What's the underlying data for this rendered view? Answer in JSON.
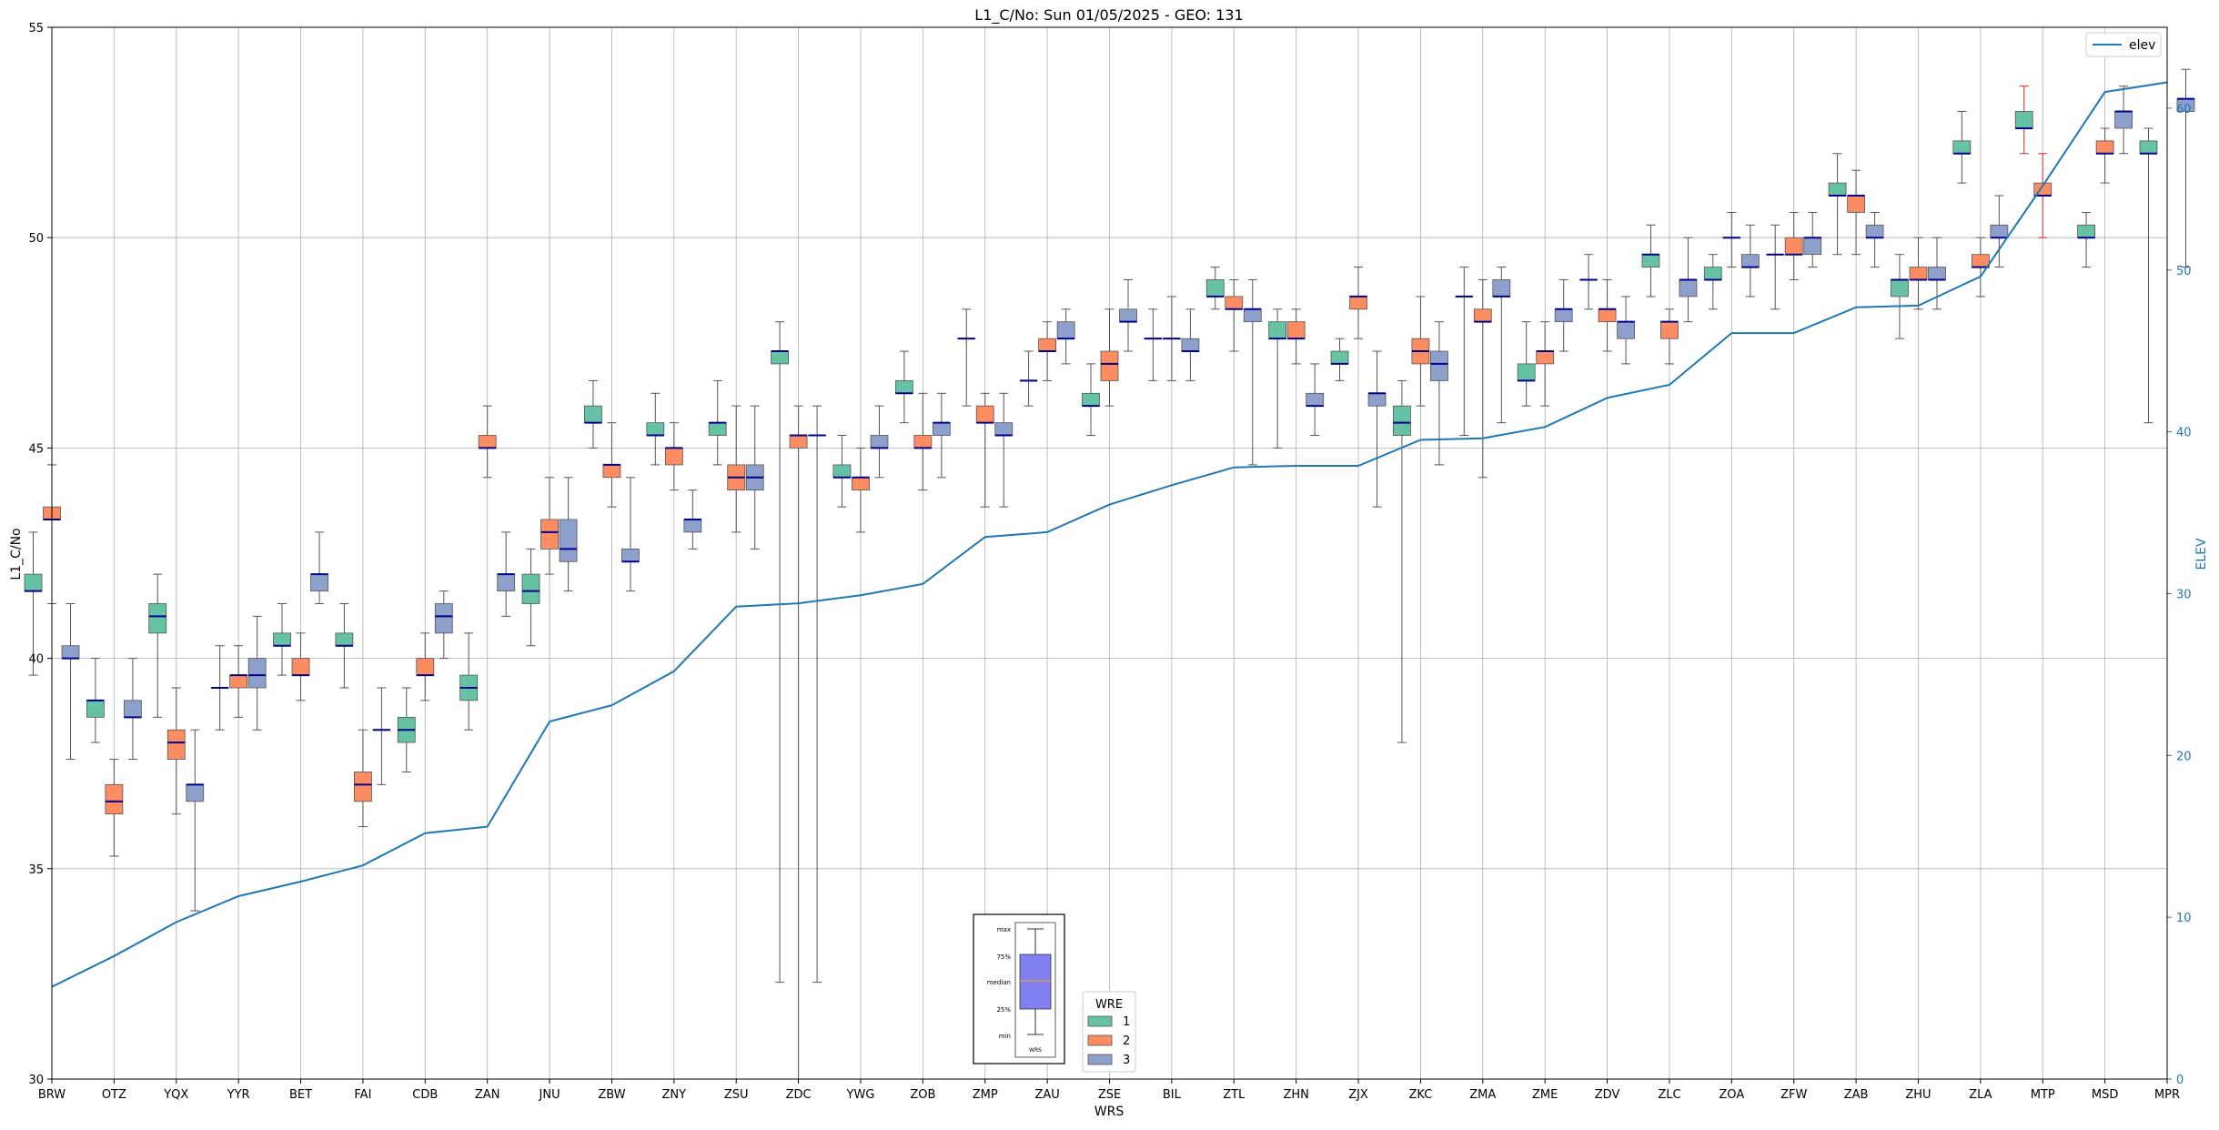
{
  "chart_data": {
    "type": "box",
    "title": "L1_C/No: Sun 01/05/2025 - GEO: 131",
    "xlabel": "WRS",
    "ylabel": "L1_C/No",
    "y2label": "ELEV",
    "ylim": [
      30,
      55
    ],
    "y2lim": [
      0,
      65
    ],
    "yticks": [
      30,
      35,
      40,
      45,
      50,
      55
    ],
    "y2ticks": [
      0,
      10,
      20,
      30,
      40,
      50,
      60
    ],
    "grid": true,
    "categories": [
      "BRW",
      "OTZ",
      "YQX",
      "YYR",
      "BET",
      "FAI",
      "CDB",
      "ZAN",
      "JNU",
      "ZBW",
      "ZNY",
      "ZSU",
      "ZDC",
      "YWG",
      "ZOB",
      "ZMP",
      "ZAU",
      "ZSE",
      "BIL",
      "ZTL",
      "ZHN",
      "ZJX",
      "ZKC",
      "ZMA",
      "ZME",
      "ZDV",
      "ZLC",
      "ZOA",
      "ZFW",
      "ZAB",
      "ZHU",
      "ZLA",
      "MTP",
      "MSD",
      "MPR"
    ],
    "wre_colors": {
      "1": "#66c2a5",
      "2": "#fc8d62",
      "3": "#8da0cb"
    },
    "median_color": "#00008b",
    "boxes": [
      {
        "cat": "BRW",
        "wre": 1,
        "min": 39.6,
        "q1": 41.6,
        "med": 41.6,
        "q3": 42.0,
        "max": 43.0
      },
      {
        "cat": "BRW",
        "wre": 2,
        "min": 41.3,
        "q1": 43.3,
        "med": 43.3,
        "q3": 43.6,
        "max": 44.6
      },
      {
        "cat": "BRW",
        "wre": 3,
        "min": 37.6,
        "q1": 40.0,
        "med": 40.0,
        "q3": 40.3,
        "max": 41.3
      },
      {
        "cat": "OTZ",
        "wre": 1,
        "min": 38.0,
        "q1": 38.6,
        "med": 39.0,
        "q3": 39.0,
        "max": 40.0
      },
      {
        "cat": "OTZ",
        "wre": 2,
        "min": 35.3,
        "q1": 36.3,
        "med": 36.6,
        "q3": 37.0,
        "max": 37.6
      },
      {
        "cat": "OTZ",
        "wre": 3,
        "min": 37.6,
        "q1": 38.6,
        "med": 38.6,
        "q3": 39.0,
        "max": 40.0
      },
      {
        "cat": "YQX",
        "wre": 1,
        "min": 38.6,
        "q1": 40.6,
        "med": 41.0,
        "q3": 41.3,
        "max": 42.0
      },
      {
        "cat": "YQX",
        "wre": 2,
        "min": 36.3,
        "q1": 37.6,
        "med": 38.0,
        "q3": 38.3,
        "max": 39.3
      },
      {
        "cat": "YQX",
        "wre": 3,
        "min": 34.0,
        "q1": 36.6,
        "med": 37.0,
        "q3": 37.0,
        "max": 38.3
      },
      {
        "cat": "YYR",
        "wre": 1,
        "min": 38.3,
        "q1": 39.3,
        "med": 39.3,
        "q3": 39.3,
        "max": 40.3
      },
      {
        "cat": "YYR",
        "wre": 2,
        "min": 38.6,
        "q1": 39.3,
        "med": 39.6,
        "q3": 39.6,
        "max": 40.3
      },
      {
        "cat": "YYR",
        "wre": 3,
        "min": 38.3,
        "q1": 39.3,
        "med": 39.6,
        "q3": 40.0,
        "max": 41.0
      },
      {
        "cat": "BET",
        "wre": 1,
        "min": 39.6,
        "q1": 40.3,
        "med": 40.3,
        "q3": 40.6,
        "max": 41.3
      },
      {
        "cat": "BET",
        "wre": 2,
        "min": 39.0,
        "q1": 39.6,
        "med": 39.6,
        "q3": 40.0,
        "max": 40.6
      },
      {
        "cat": "BET",
        "wre": 3,
        "min": 41.3,
        "q1": 41.6,
        "med": 42.0,
        "q3": 42.0,
        "max": 43.0
      },
      {
        "cat": "FAI",
        "wre": 1,
        "min": 39.3,
        "q1": 40.3,
        "med": 40.3,
        "q3": 40.6,
        "max": 41.3
      },
      {
        "cat": "FAI",
        "wre": 2,
        "min": 36.0,
        "q1": 36.6,
        "med": 37.0,
        "q3": 37.3,
        "max": 38.3
      },
      {
        "cat": "FAI",
        "wre": 3,
        "min": 37.0,
        "q1": 38.3,
        "med": 38.3,
        "q3": 38.3,
        "max": 39.3
      },
      {
        "cat": "CDB",
        "wre": 1,
        "min": 37.3,
        "q1": 38.0,
        "med": 38.3,
        "q3": 38.6,
        "max": 39.3
      },
      {
        "cat": "CDB",
        "wre": 2,
        "min": 39.0,
        "q1": 39.6,
        "med": 39.6,
        "q3": 40.0,
        "max": 40.6
      },
      {
        "cat": "CDB",
        "wre": 3,
        "min": 40.0,
        "q1": 40.6,
        "med": 41.0,
        "q3": 41.3,
        "max": 41.6
      },
      {
        "cat": "ZAN",
        "wre": 1,
        "min": 38.3,
        "q1": 39.0,
        "med": 39.3,
        "q3": 39.6,
        "max": 40.6
      },
      {
        "cat": "ZAN",
        "wre": 2,
        "min": 44.3,
        "q1": 45.0,
        "med": 45.0,
        "q3": 45.3,
        "max": 46.0
      },
      {
        "cat": "ZAN",
        "wre": 3,
        "min": 41.0,
        "q1": 41.6,
        "med": 42.0,
        "q3": 42.0,
        "max": 43.0
      },
      {
        "cat": "JNU",
        "wre": 1,
        "min": 40.3,
        "q1": 41.3,
        "med": 41.6,
        "q3": 42.0,
        "max": 42.6
      },
      {
        "cat": "JNU",
        "wre": 2,
        "min": 42.0,
        "q1": 42.6,
        "med": 43.0,
        "q3": 43.3,
        "max": 44.3
      },
      {
        "cat": "JNU",
        "wre": 3,
        "min": 41.6,
        "q1": 42.3,
        "med": 42.6,
        "q3": 43.3,
        "max": 44.3
      },
      {
        "cat": "ZBW",
        "wre": 1,
        "min": 45.0,
        "q1": 45.6,
        "med": 45.6,
        "q3": 46.0,
        "max": 46.6
      },
      {
        "cat": "ZBW",
        "wre": 2,
        "min": 43.6,
        "q1": 44.3,
        "med": 44.6,
        "q3": 44.6,
        "max": 45.6
      },
      {
        "cat": "ZBW",
        "wre": 3,
        "min": 41.6,
        "q1": 42.3,
        "med": 42.3,
        "q3": 42.6,
        "max": 44.3
      },
      {
        "cat": "ZNY",
        "wre": 1,
        "min": 44.6,
        "q1": 45.3,
        "med": 45.3,
        "q3": 45.6,
        "max": 46.3
      },
      {
        "cat": "ZNY",
        "wre": 2,
        "min": 44.0,
        "q1": 44.6,
        "med": 45.0,
        "q3": 45.0,
        "max": 45.6
      },
      {
        "cat": "ZNY",
        "wre": 3,
        "min": 42.6,
        "q1": 43.0,
        "med": 43.3,
        "q3": 43.3,
        "max": 44.0
      },
      {
        "cat": "ZSU",
        "wre": 1,
        "min": 44.6,
        "q1": 45.3,
        "med": 45.6,
        "q3": 45.6,
        "max": 46.6
      },
      {
        "cat": "ZSU",
        "wre": 2,
        "min": 43.0,
        "q1": 44.0,
        "med": 44.3,
        "q3": 44.6,
        "max": 46.0
      },
      {
        "cat": "ZSU",
        "wre": 3,
        "min": 42.6,
        "q1": 44.0,
        "med": 44.3,
        "q3": 44.6,
        "max": 46.0
      },
      {
        "cat": "ZDC",
        "wre": 1,
        "min": 32.3,
        "q1": 47.0,
        "med": 47.3,
        "q3": 47.3,
        "max": 48.0
      },
      {
        "cat": "ZDC",
        "wre": 2,
        "min": 30.0,
        "q1": 45.0,
        "med": 45.3,
        "q3": 45.3,
        "max": 46.0
      },
      {
        "cat": "ZDC",
        "wre": 3,
        "min": 32.3,
        "q1": 45.3,
        "med": 45.3,
        "q3": 45.3,
        "max": 46.0
      },
      {
        "cat": "YWG",
        "wre": 1,
        "min": 43.6,
        "q1": 44.3,
        "med": 44.3,
        "q3": 44.6,
        "max": 45.3
      },
      {
        "cat": "YWG",
        "wre": 2,
        "min": 43.0,
        "q1": 44.0,
        "med": 44.3,
        "q3": 44.3,
        "max": 45.0
      },
      {
        "cat": "YWG",
        "wre": 3,
        "min": 44.3,
        "q1": 45.0,
        "med": 45.0,
        "q3": 45.3,
        "max": 46.0
      },
      {
        "cat": "ZOB",
        "wre": 1,
        "min": 45.6,
        "q1": 46.3,
        "med": 46.3,
        "q3": 46.6,
        "max": 47.3
      },
      {
        "cat": "ZOB",
        "wre": 2,
        "min": 44.0,
        "q1": 45.0,
        "med": 45.0,
        "q3": 45.3,
        "max": 46.3
      },
      {
        "cat": "ZOB",
        "wre": 3,
        "min": 44.3,
        "q1": 45.3,
        "med": 45.6,
        "q3": 45.6,
        "max": 46.3
      },
      {
        "cat": "ZMP",
        "wre": 1,
        "min": 46.0,
        "q1": 47.6,
        "med": 47.6,
        "q3": 47.6,
        "max": 48.3
      },
      {
        "cat": "ZMP",
        "wre": 2,
        "min": 43.6,
        "q1": 45.6,
        "med": 45.6,
        "q3": 46.0,
        "max": 46.3
      },
      {
        "cat": "ZMP",
        "wre": 3,
        "min": 43.6,
        "q1": 45.3,
        "med": 45.3,
        "q3": 45.6,
        "max": 46.3
      },
      {
        "cat": "ZAU",
        "wre": 1,
        "min": 46.0,
        "q1": 46.6,
        "med": 46.6,
        "q3": 46.6,
        "max": 47.3
      },
      {
        "cat": "ZAU",
        "wre": 2,
        "min": 46.6,
        "q1": 47.3,
        "med": 47.3,
        "q3": 47.6,
        "max": 48.0
      },
      {
        "cat": "ZAU",
        "wre": 3,
        "min": 47.0,
        "q1": 47.6,
        "med": 47.6,
        "q3": 48.0,
        "max": 48.3
      },
      {
        "cat": "ZSE",
        "wre": 1,
        "min": 45.3,
        "q1": 46.0,
        "med": 46.0,
        "q3": 46.3,
        "max": 47.0
      },
      {
        "cat": "ZSE",
        "wre": 2,
        "min": 46.0,
        "q1": 46.6,
        "med": 47.0,
        "q3": 47.3,
        "max": 48.3
      },
      {
        "cat": "ZSE",
        "wre": 3,
        "min": 47.3,
        "q1": 48.0,
        "med": 48.0,
        "q3": 48.3,
        "max": 49.0
      },
      {
        "cat": "BIL",
        "wre": 1,
        "min": 46.6,
        "q1": 47.6,
        "med": 47.6,
        "q3": 47.6,
        "max": 48.3
      },
      {
        "cat": "BIL",
        "wre": 2,
        "min": 46.6,
        "q1": 47.6,
        "med": 47.6,
        "q3": 47.6,
        "max": 48.6
      },
      {
        "cat": "BIL",
        "wre": 3,
        "min": 46.6,
        "q1": 47.3,
        "med": 47.3,
        "q3": 47.6,
        "max": 48.3
      },
      {
        "cat": "ZTL",
        "wre": 1,
        "min": 48.3,
        "q1": 48.6,
        "med": 48.6,
        "q3": 49.0,
        "max": 49.3
      },
      {
        "cat": "ZTL",
        "wre": 2,
        "min": 47.3,
        "q1": 48.3,
        "med": 48.3,
        "q3": 48.6,
        "max": 49.0
      },
      {
        "cat": "ZTL",
        "wre": 3,
        "min": 44.6,
        "q1": 48.0,
        "med": 48.3,
        "q3": 48.3,
        "max": 49.0
      },
      {
        "cat": "ZHN",
        "wre": 1,
        "min": 45.0,
        "q1": 47.6,
        "med": 47.6,
        "q3": 48.0,
        "max": 48.3
      },
      {
        "cat": "ZHN",
        "wre": 2,
        "min": 47.0,
        "q1": 47.6,
        "med": 47.6,
        "q3": 48.0,
        "max": 48.3
      },
      {
        "cat": "ZHN",
        "wre": 3,
        "min": 45.3,
        "q1": 46.0,
        "med": 46.0,
        "q3": 46.3,
        "max": 47.0
      },
      {
        "cat": "ZJX",
        "wre": 1,
        "min": 46.6,
        "q1": 47.0,
        "med": 47.0,
        "q3": 47.3,
        "max": 47.6
      },
      {
        "cat": "ZJX",
        "wre": 2,
        "min": 47.6,
        "q1": 48.3,
        "med": 48.6,
        "q3": 48.6,
        "max": 49.3
      },
      {
        "cat": "ZJX",
        "wre": 3,
        "min": 43.6,
        "q1": 46.0,
        "med": 46.3,
        "q3": 46.3,
        "max": 47.3
      },
      {
        "cat": "ZKC",
        "wre": 1,
        "min": 38.0,
        "q1": 45.3,
        "med": 45.6,
        "q3": 46.0,
        "max": 46.6
      },
      {
        "cat": "ZKC",
        "wre": 2,
        "min": 46.0,
        "q1": 47.0,
        "med": 47.3,
        "q3": 47.6,
        "max": 48.6
      },
      {
        "cat": "ZKC",
        "wre": 3,
        "min": 44.6,
        "q1": 46.6,
        "med": 47.0,
        "q3": 47.3,
        "max": 48.0
      },
      {
        "cat": "ZMA",
        "wre": 1,
        "min": 45.3,
        "q1": 48.6,
        "med": 48.6,
        "q3": 48.6,
        "max": 49.3
      },
      {
        "cat": "ZMA",
        "wre": 2,
        "min": 44.3,
        "q1": 48.0,
        "med": 48.0,
        "q3": 48.3,
        "max": 49.0
      },
      {
        "cat": "ZMA",
        "wre": 3,
        "min": 45.6,
        "q1": 48.6,
        "med": 48.6,
        "q3": 49.0,
        "max": 49.3
      },
      {
        "cat": "ZME",
        "wre": 1,
        "min": 46.0,
        "q1": 46.6,
        "med": 46.6,
        "q3": 47.0,
        "max": 48.0
      },
      {
        "cat": "ZME",
        "wre": 2,
        "min": 46.0,
        "q1": 47.0,
        "med": 47.3,
        "q3": 47.3,
        "max": 48.0
      },
      {
        "cat": "ZME",
        "wre": 3,
        "min": 47.3,
        "q1": 48.0,
        "med": 48.3,
        "q3": 48.3,
        "max": 49.0
      },
      {
        "cat": "ZDV",
        "wre": 1,
        "min": 48.3,
        "q1": 49.0,
        "med": 49.0,
        "q3": 49.0,
        "max": 49.6
      },
      {
        "cat": "ZDV",
        "wre": 2,
        "min": 47.3,
        "q1": 48.0,
        "med": 48.3,
        "q3": 48.3,
        "max": 49.0
      },
      {
        "cat": "ZDV",
        "wre": 3,
        "min": 47.0,
        "q1": 47.6,
        "med": 48.0,
        "q3": 48.0,
        "max": 48.6
      },
      {
        "cat": "ZLC",
        "wre": 1,
        "min": 48.6,
        "q1": 49.3,
        "med": 49.6,
        "q3": 49.6,
        "max": 50.3
      },
      {
        "cat": "ZLC",
        "wre": 2,
        "min": 47.0,
        "q1": 47.6,
        "med": 48.0,
        "q3": 48.0,
        "max": 48.3
      },
      {
        "cat": "ZLC",
        "wre": 3,
        "min": 48.0,
        "q1": 48.6,
        "med": 49.0,
        "q3": 49.0,
        "max": 50.0
      },
      {
        "cat": "ZOA",
        "wre": 1,
        "min": 48.3,
        "q1": 49.0,
        "med": 49.0,
        "q3": 49.3,
        "max": 49.6
      },
      {
        "cat": "ZOA",
        "wre": 2,
        "min": 49.3,
        "q1": 50.0,
        "med": 50.0,
        "q3": 50.0,
        "max": 50.6
      },
      {
        "cat": "ZOA",
        "wre": 3,
        "min": 48.6,
        "q1": 49.3,
        "med": 49.3,
        "q3": 49.6,
        "max": 50.3
      },
      {
        "cat": "ZFW",
        "wre": 1,
        "min": 48.3,
        "q1": 49.6,
        "med": 49.6,
        "q3": 49.6,
        "max": 50.3
      },
      {
        "cat": "ZFW",
        "wre": 2,
        "min": 49.0,
        "q1": 49.6,
        "med": 49.6,
        "q3": 50.0,
        "max": 50.6
      },
      {
        "cat": "ZFW",
        "wre": 3,
        "min": 49.3,
        "q1": 49.6,
        "med": 50.0,
        "q3": 50.0,
        "max": 50.6
      },
      {
        "cat": "ZAB",
        "wre": 1,
        "min": 49.6,
        "q1": 51.0,
        "med": 51.0,
        "q3": 51.3,
        "max": 52.0
      },
      {
        "cat": "ZAB",
        "wre": 2,
        "min": 49.6,
        "q1": 50.6,
        "med": 51.0,
        "q3": 51.0,
        "max": 51.6
      },
      {
        "cat": "ZAB",
        "wre": 3,
        "min": 49.3,
        "q1": 50.0,
        "med": 50.0,
        "q3": 50.3,
        "max": 50.6
      },
      {
        "cat": "ZHU",
        "wre": 1,
        "min": 47.6,
        "q1": 48.6,
        "med": 49.0,
        "q3": 49.0,
        "max": 49.6
      },
      {
        "cat": "ZHU",
        "wre": 2,
        "min": 48.3,
        "q1": 49.0,
        "med": 49.0,
        "q3": 49.3,
        "max": 50.0
      },
      {
        "cat": "ZHU",
        "wre": 3,
        "min": 48.3,
        "q1": 49.0,
        "med": 49.0,
        "q3": 49.3,
        "max": 50.0
      },
      {
        "cat": "ZLA",
        "wre": 1,
        "min": 51.3,
        "q1": 52.0,
        "med": 52.0,
        "q3": 52.3,
        "max": 53.0
      },
      {
        "cat": "ZLA",
        "wre": 2,
        "min": 48.6,
        "q1": 49.3,
        "med": 49.3,
        "q3": 49.6,
        "max": 50.0
      },
      {
        "cat": "ZLA",
        "wre": 3,
        "min": 49.3,
        "q1": 50.0,
        "med": 50.0,
        "q3": 50.3,
        "max": 51.0
      },
      {
        "cat": "MTP",
        "wre": 1,
        "min": 52.0,
        "q1": 52.6,
        "med": 52.6,
        "q3": 53.0,
        "max": 53.6,
        "whisker": "#d62728"
      },
      {
        "cat": "MTP",
        "wre": 2,
        "min": 50.0,
        "q1": 51.0,
        "med": 51.0,
        "q3": 51.3,
        "max": 52.0,
        "whisker": "#d62728"
      },
      {
        "cat": "MSD",
        "wre": 1,
        "min": 49.3,
        "q1": 50.0,
        "med": 50.0,
        "q3": 50.3,
        "max": 50.6
      },
      {
        "cat": "MSD",
        "wre": 2,
        "min": 51.3,
        "q1": 52.0,
        "med": 52.0,
        "q3": 52.3,
        "max": 52.6
      },
      {
        "cat": "MSD",
        "wre": 3,
        "min": 52.0,
        "q1": 52.6,
        "med": 53.0,
        "q3": 53.0,
        "max": 53.6
      },
      {
        "cat": "MPR",
        "wre": 1,
        "min": 45.6,
        "q1": 52.0,
        "med": 52.0,
        "q3": 52.3,
        "max": 52.6
      },
      {
        "cat": "MPR",
        "wre": 3,
        "min": 49.3,
        "q1": 53.0,
        "med": 53.3,
        "q3": 53.3,
        "max": 54.0
      }
    ],
    "elev": {
      "name": "elev",
      "x": [
        "BRW",
        "OTZ",
        "YQX",
        "YYR",
        "BET",
        "FAI",
        "CDB",
        "ZAN",
        "JNU",
        "ZBW",
        "ZNY",
        "ZSU",
        "ZDC",
        "YWG",
        "ZOB",
        "ZMP",
        "ZAU",
        "ZSE",
        "BIL",
        "ZTL",
        "ZHN",
        "ZJX",
        "ZKC",
        "ZMA",
        "ZME",
        "ZDV",
        "ZLC",
        "ZOA",
        "ZFW",
        "ZAB",
        "ZHU",
        "ZLA",
        "MTP",
        "MSD",
        "MPR"
      ],
      "values": [
        5.7,
        7.6,
        9.7,
        11.3,
        12.2,
        13.2,
        15.2,
        15.6,
        22.1,
        23.1,
        25.2,
        29.2,
        29.4,
        29.9,
        30.6,
        33.5,
        33.8,
        35.5,
        36.7,
        37.8,
        37.9,
        37.9,
        39.5,
        39.6,
        40.3,
        42.1,
        42.9,
        46.1,
        46.1,
        47.7,
        47.8,
        49.6,
        55.2,
        61.0,
        61.6
      ],
      "color": "#1f77b4"
    },
    "legend_elev": {
      "label": "elev",
      "placement": "top-right"
    },
    "legend_wre": {
      "title": "WRE",
      "entries": [
        "1",
        "2",
        "3"
      ],
      "placement": "bottom-center"
    },
    "inset_key": {
      "labels": [
        "max",
        "75%",
        "median",
        "25%",
        "min"
      ],
      "xlabel": "WRS",
      "box_color": "#8080f0",
      "median_color": "#e0a040"
    }
  }
}
